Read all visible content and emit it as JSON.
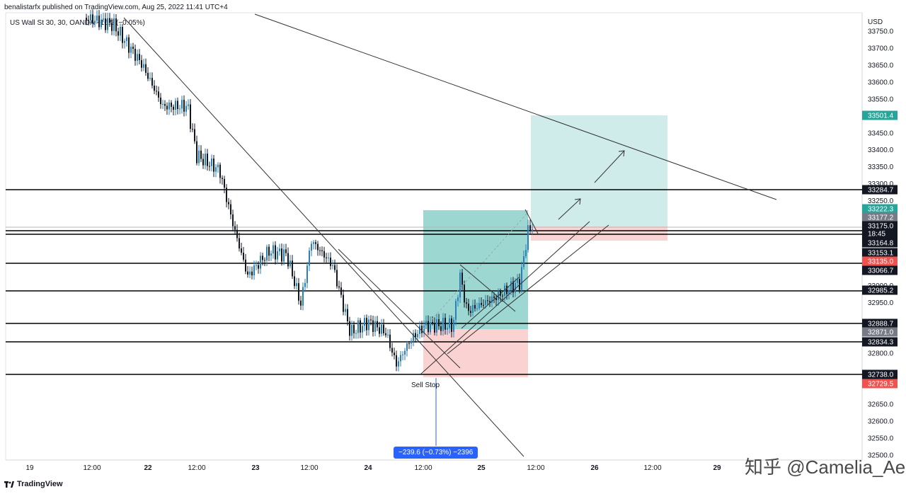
{
  "header": {
    "publisher": "benalistarfx published on TradingView.com, Aug 25, 2022 11:41 UTC+4",
    "symbol": "US Wall St 30, 30, OANDA  −16.5 (−0.05%)"
  },
  "axis": {
    "currency": "USD",
    "price_ticks": [
      "33750.0",
      "33700.0",
      "33650.0",
      "33600.0",
      "33550.0",
      "33450.0",
      "33400.0",
      "33350.0",
      "33300.0",
      "33250.0",
      "33000.0",
      "32950.0",
      "32800.0",
      "32650.0",
      "32600.0",
      "32550.0",
      "32500.0"
    ],
    "time_ticks": [
      "19",
      "12:00",
      "22",
      "12:00",
      "23",
      "12:00",
      "24",
      "12:00",
      "25",
      "12:00",
      "26",
      "12:00",
      "29"
    ]
  },
  "price_tags": [
    {
      "label": "33501.4",
      "color": "#26a69a"
    },
    {
      "label": "33284.7",
      "color": "#131722"
    },
    {
      "label": "33222.3",
      "color": "#26a69a"
    },
    {
      "label": "33177.2",
      "color": "#787b86"
    },
    {
      "label": "33175.0",
      "color": "#131722"
    },
    {
      "label": "18:45",
      "color": "#131722"
    },
    {
      "label": "33164.8",
      "color": "#131722"
    },
    {
      "label": "33153.1",
      "color": "#131722"
    },
    {
      "label": "33135.0",
      "color": "#ef5350"
    },
    {
      "label": "33066.7",
      "color": "#131722"
    },
    {
      "label": "32985.2",
      "color": "#131722"
    },
    {
      "label": "32888.7",
      "color": "#131722"
    },
    {
      "label": "32871.0",
      "color": "#787b86"
    },
    {
      "label": "32834.3",
      "color": "#131722"
    },
    {
      "label": "32738.0",
      "color": "#131722"
    },
    {
      "label": "32729.5",
      "color": "#ef5350"
    }
  ],
  "annotations": {
    "sell_stop": "Sell Stop",
    "measure": "−239.6 (−0.73%) −2396"
  },
  "footer": {
    "brand": "TradingView"
  },
  "watermark": "知乎 @Camelia_Ae",
  "chart_data": {
    "type": "candlestick",
    "title": "US Wall St 30, 30, OANDA",
    "ylabel": "USD",
    "ylim": [
      32480,
      33790
    ],
    "x_ticks": [
      "19",
      "12:00",
      "22",
      "12:00",
      "23",
      "12:00",
      "24",
      "12:00",
      "25",
      "12:00",
      "26",
      "12:00",
      "29"
    ],
    "horizontal_levels": [
      33284.7,
      33164.8,
      33153.1,
      33066.7,
      32985.2,
      32888.7,
      32834.3,
      32738.0
    ],
    "long_position": {
      "entry": 32871.0,
      "target": 33222.3,
      "stop": 32729.5
    },
    "short_position": {
      "entry": 33135.0,
      "target": 33501.4,
      "stop": 33177.2
    }
  }
}
